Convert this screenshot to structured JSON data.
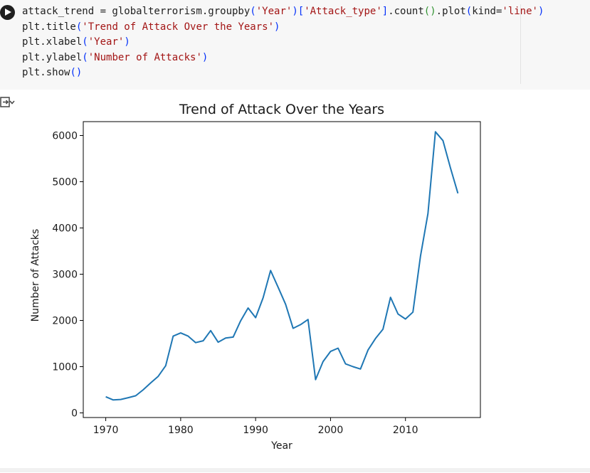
{
  "code_cell": {
    "lines": [
      [
        {
          "t": "attack_trend = globalterrorism.groupby",
          "c": "plain"
        },
        {
          "t": "(",
          "c": "paren"
        },
        {
          "t": "'Year'",
          "c": "str"
        },
        {
          "t": ")",
          "c": "paren"
        },
        {
          "t": "[",
          "c": "paren"
        },
        {
          "t": "'Attack_type'",
          "c": "str"
        },
        {
          "t": "]",
          "c": "paren"
        },
        {
          "t": ".count",
          "c": "plain"
        },
        {
          "t": "()",
          "c": "bracket"
        },
        {
          "t": ".plot",
          "c": "plain"
        },
        {
          "t": "(",
          "c": "paren"
        },
        {
          "t": "kind=",
          "c": "plain"
        },
        {
          "t": "'line'",
          "c": "str"
        },
        {
          "t": ")",
          "c": "paren"
        }
      ],
      [
        {
          "t": "plt.title",
          "c": "plain"
        },
        {
          "t": "(",
          "c": "paren"
        },
        {
          "t": "'Trend of Attack Over the Years'",
          "c": "str"
        },
        {
          "t": ")",
          "c": "paren"
        }
      ],
      [
        {
          "t": "plt.xlabel",
          "c": "plain"
        },
        {
          "t": "(",
          "c": "paren"
        },
        {
          "t": "'Year'",
          "c": "str"
        },
        {
          "t": ")",
          "c": "paren"
        }
      ],
      [
        {
          "t": "plt.ylabel",
          "c": "plain"
        },
        {
          "t": "(",
          "c": "paren"
        },
        {
          "t": "'Number of Attacks'",
          "c": "str"
        },
        {
          "t": ")",
          "c": "paren"
        }
      ],
      [
        {
          "t": "plt.show",
          "c": "plain"
        },
        {
          "t": "()",
          "c": "paren"
        }
      ]
    ]
  },
  "icons": {
    "run": "play-circle-icon",
    "output": "output-expand-icon"
  },
  "chart_data": {
    "type": "line",
    "title": "Trend of Attack Over the Years",
    "xlabel": "Year",
    "ylabel": "Number of Attacks",
    "xlim": [
      1967,
      2020
    ],
    "ylim": [
      -100,
      6300
    ],
    "xticks": [
      1970,
      1980,
      1990,
      2000,
      2010
    ],
    "yticks": [
      0,
      1000,
      2000,
      3000,
      4000,
      5000,
      6000
    ],
    "grid": false,
    "color": "#1f77b4",
    "x": [
      1970,
      1971,
      1972,
      1973,
      1974,
      1975,
      1976,
      1977,
      1978,
      1979,
      1980,
      1981,
      1982,
      1983,
      1984,
      1985,
      1986,
      1987,
      1988,
      1989,
      1990,
      1991,
      1992,
      1993,
      1994,
      1995,
      1996,
      1997,
      1998,
      1999,
      2000,
      2001,
      2002,
      2003,
      2004,
      2005,
      2006,
      2007,
      2008,
      2009,
      2010,
      2011,
      2012,
      2013,
      2014,
      2015,
      2016,
      2017
    ],
    "y": [
      350,
      280,
      290,
      330,
      370,
      500,
      650,
      790,
      1020,
      1660,
      1730,
      1660,
      1520,
      1560,
      1780,
      1530,
      1620,
      1640,
      1990,
      2270,
      2060,
      2490,
      3080,
      2720,
      2350,
      1830,
      1910,
      2020,
      720,
      1110,
      1330,
      1400,
      1060,
      1000,
      950,
      1360,
      1610,
      1810,
      2500,
      2140,
      2030,
      2180,
      3390,
      4310,
      6080,
      5890,
      5300,
      4750
    ]
  }
}
